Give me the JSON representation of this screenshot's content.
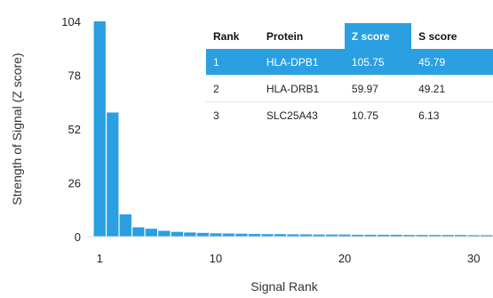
{
  "chart_data": {
    "type": "bar",
    "xlabel": "Signal Rank",
    "ylabel": "Strength of Signal (Z score)",
    "xlim": [
      0,
      31
    ],
    "ylim": [
      0,
      104
    ],
    "x_ticks": [
      1,
      10,
      20,
      30
    ],
    "y_ticks": [
      0,
      26,
      52,
      78,
      104
    ],
    "grid": false,
    "bar_color": "#2a9fe2",
    "x": [
      1,
      2,
      3,
      4,
      5,
      6,
      7,
      8,
      9,
      10,
      11,
      12,
      13,
      14,
      15,
      16,
      17,
      18,
      19,
      20,
      21,
      22,
      23,
      24,
      25,
      26,
      27,
      28,
      29,
      30,
      31
    ],
    "values": [
      105.75,
      59.97,
      10.75,
      4.5,
      3.8,
      2.8,
      2.3,
      2.0,
      1.8,
      1.6,
      1.5,
      1.4,
      1.3,
      1.2,
      1.2,
      1.1,
      1.1,
      1.0,
      1.0,
      1.0,
      0.9,
      0.9,
      0.9,
      0.9,
      0.8,
      0.8,
      0.8,
      0.8,
      0.8,
      0.7,
      0.7
    ]
  },
  "table": {
    "headers": [
      "Rank",
      "Protein",
      "Z score",
      "S score"
    ],
    "rows": [
      [
        "1",
        "HLA-DPB1",
        "105.75",
        "45.79"
      ],
      [
        "2",
        "HLA-DRB1",
        "59.97",
        "49.21"
      ],
      [
        "3",
        "SLC25A43",
        "10.75",
        "6.13"
      ]
    ]
  }
}
